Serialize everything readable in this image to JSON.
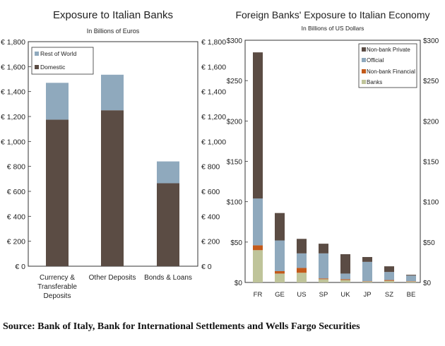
{
  "colors": {
    "domestic": "#5b4c44",
    "rest_of_world": "#8fa9bd",
    "non_bank_private": "#5b4c44",
    "official": "#8fa9bd",
    "non_bank_financial": "#c35a1a",
    "banks": "#bfc49a",
    "frame": "#333333"
  },
  "chart_data": [
    {
      "type": "bar",
      "stacked": true,
      "title": "Exposure to Italian Banks",
      "subtitle": "In Billions of Euros",
      "categories": [
        "Currency &\nTransferable\nDeposits",
        "Other Deposits",
        "Bonds & Loans"
      ],
      "series": [
        {
          "name": "Domestic",
          "values": [
            1175,
            1250,
            665
          ]
        },
        {
          "name": "Rest of World",
          "values": [
            295,
            285,
            175
          ]
        }
      ],
      "ylim": [
        0,
        1800
      ],
      "yticks": [
        "€ 0",
        "€ 200",
        "€ 400",
        "€ 600",
        "€ 800",
        "€ 1,000",
        "€ 1,200",
        "€ 1,400",
        "€ 1,600",
        "€ 1,800"
      ],
      "legend": [
        "Rest of World",
        "Domestic"
      ],
      "legend_position": "top-left",
      "grid": false
    },
    {
      "type": "bar",
      "stacked": true,
      "title": "Foreign Banks' Exposure to Italian Economy",
      "subtitle": "In Billions of US Dollars",
      "categories": [
        "FR",
        "GE",
        "US",
        "SP",
        "UK",
        "JP",
        "SZ",
        "BE"
      ],
      "series": [
        {
          "name": "Banks",
          "values": [
            40,
            11,
            12,
            4,
            3,
            1,
            2,
            1
          ]
        },
        {
          "name": "Non-bank Financial",
          "values": [
            6,
            3,
            6,
            1,
            1,
            0.5,
            1,
            0.5
          ]
        },
        {
          "name": "Official",
          "values": [
            58,
            38,
            18,
            31,
            7,
            24,
            10,
            7
          ]
        },
        {
          "name": "Non-bank Private",
          "values": [
            181,
            34,
            18,
            12,
            24,
            6,
            7,
            1
          ]
        }
      ],
      "ylim": [
        0,
        300
      ],
      "yticks": [
        "$0",
        "$50",
        "$100",
        "$150",
        "$200",
        "$250",
        "$300"
      ],
      "legend": [
        "Non-bank Private",
        "Official",
        "Non-bank Financial",
        "Banks"
      ],
      "legend_position": "top-right",
      "grid": false
    }
  ],
  "source": "Source:  Bank of Italy, Bank for International Settlements and Wells Fargo Securities"
}
